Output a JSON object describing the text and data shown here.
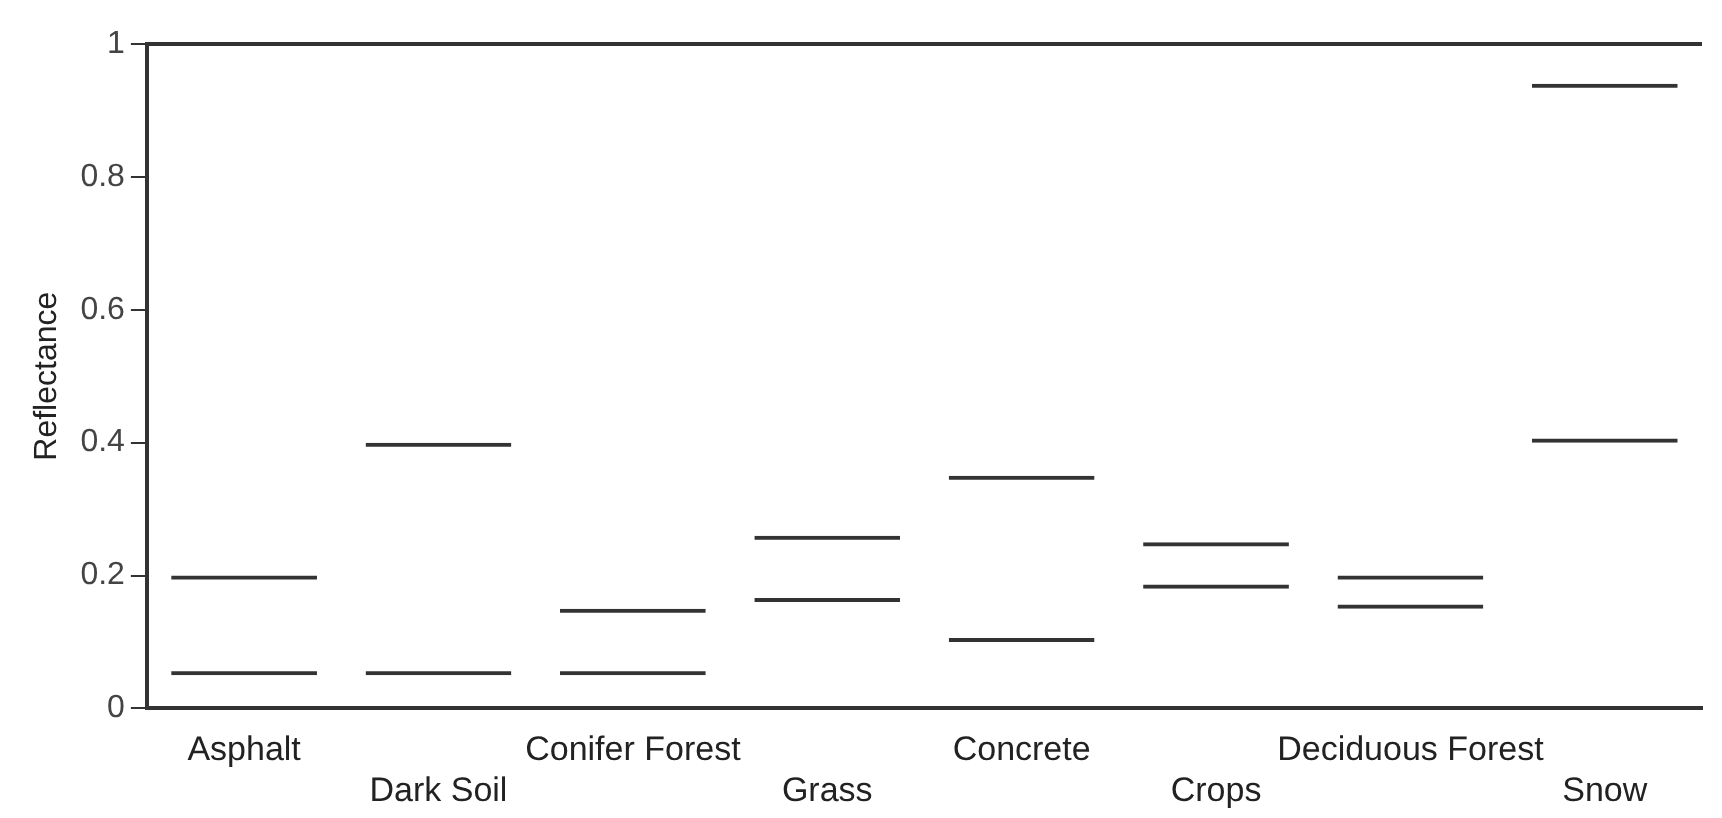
{
  "chart_data": {
    "type": "bar",
    "ylabel": "Reflectance",
    "categories": [
      "Asphalt",
      "Dark Soil",
      "Conifer Forest",
      "Grass",
      "Concrete",
      "Crops",
      "Deciduous Forest",
      "Snow"
    ],
    "base": [
      0.05,
      0.05,
      0.05,
      0.16,
      0.1,
      0.18,
      0.15,
      0.4
    ],
    "values": [
      0.15,
      0.35,
      0.1,
      0.1,
      0.25,
      0.07,
      0.05,
      0.54
    ],
    "color": "#333333",
    "ylim": [
      0,
      1
    ],
    "yticks": [
      0,
      0.2,
      0.4,
      0.6,
      0.8,
      1
    ],
    "grid": false,
    "legend": false
  }
}
